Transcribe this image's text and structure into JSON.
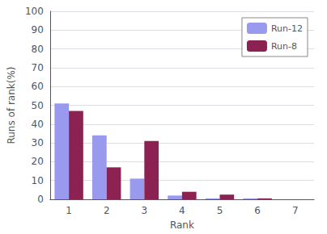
{
  "chart_data": {
    "type": "bar",
    "categories": [
      "1",
      "2",
      "3",
      "4",
      "5",
      "6",
      "7"
    ],
    "series": [
      {
        "name": "Run-12",
        "color": "#9999ee",
        "values": [
          51,
          34,
          11,
          2,
          0.5,
          0.5,
          0
        ]
      },
      {
        "name": "Run-8",
        "color": "#8B2252",
        "values": [
          47,
          17,
          31,
          4,
          2.5,
          0.5,
          0
        ]
      }
    ],
    "xlabel": "Rank",
    "ylabel": "Runs of rank(%)",
    "ylim": [
      0,
      100
    ],
    "yticks": [
      0,
      10,
      20,
      30,
      40,
      50,
      60,
      70,
      80,
      90,
      100
    ],
    "grid": true,
    "legend": "upper right"
  }
}
